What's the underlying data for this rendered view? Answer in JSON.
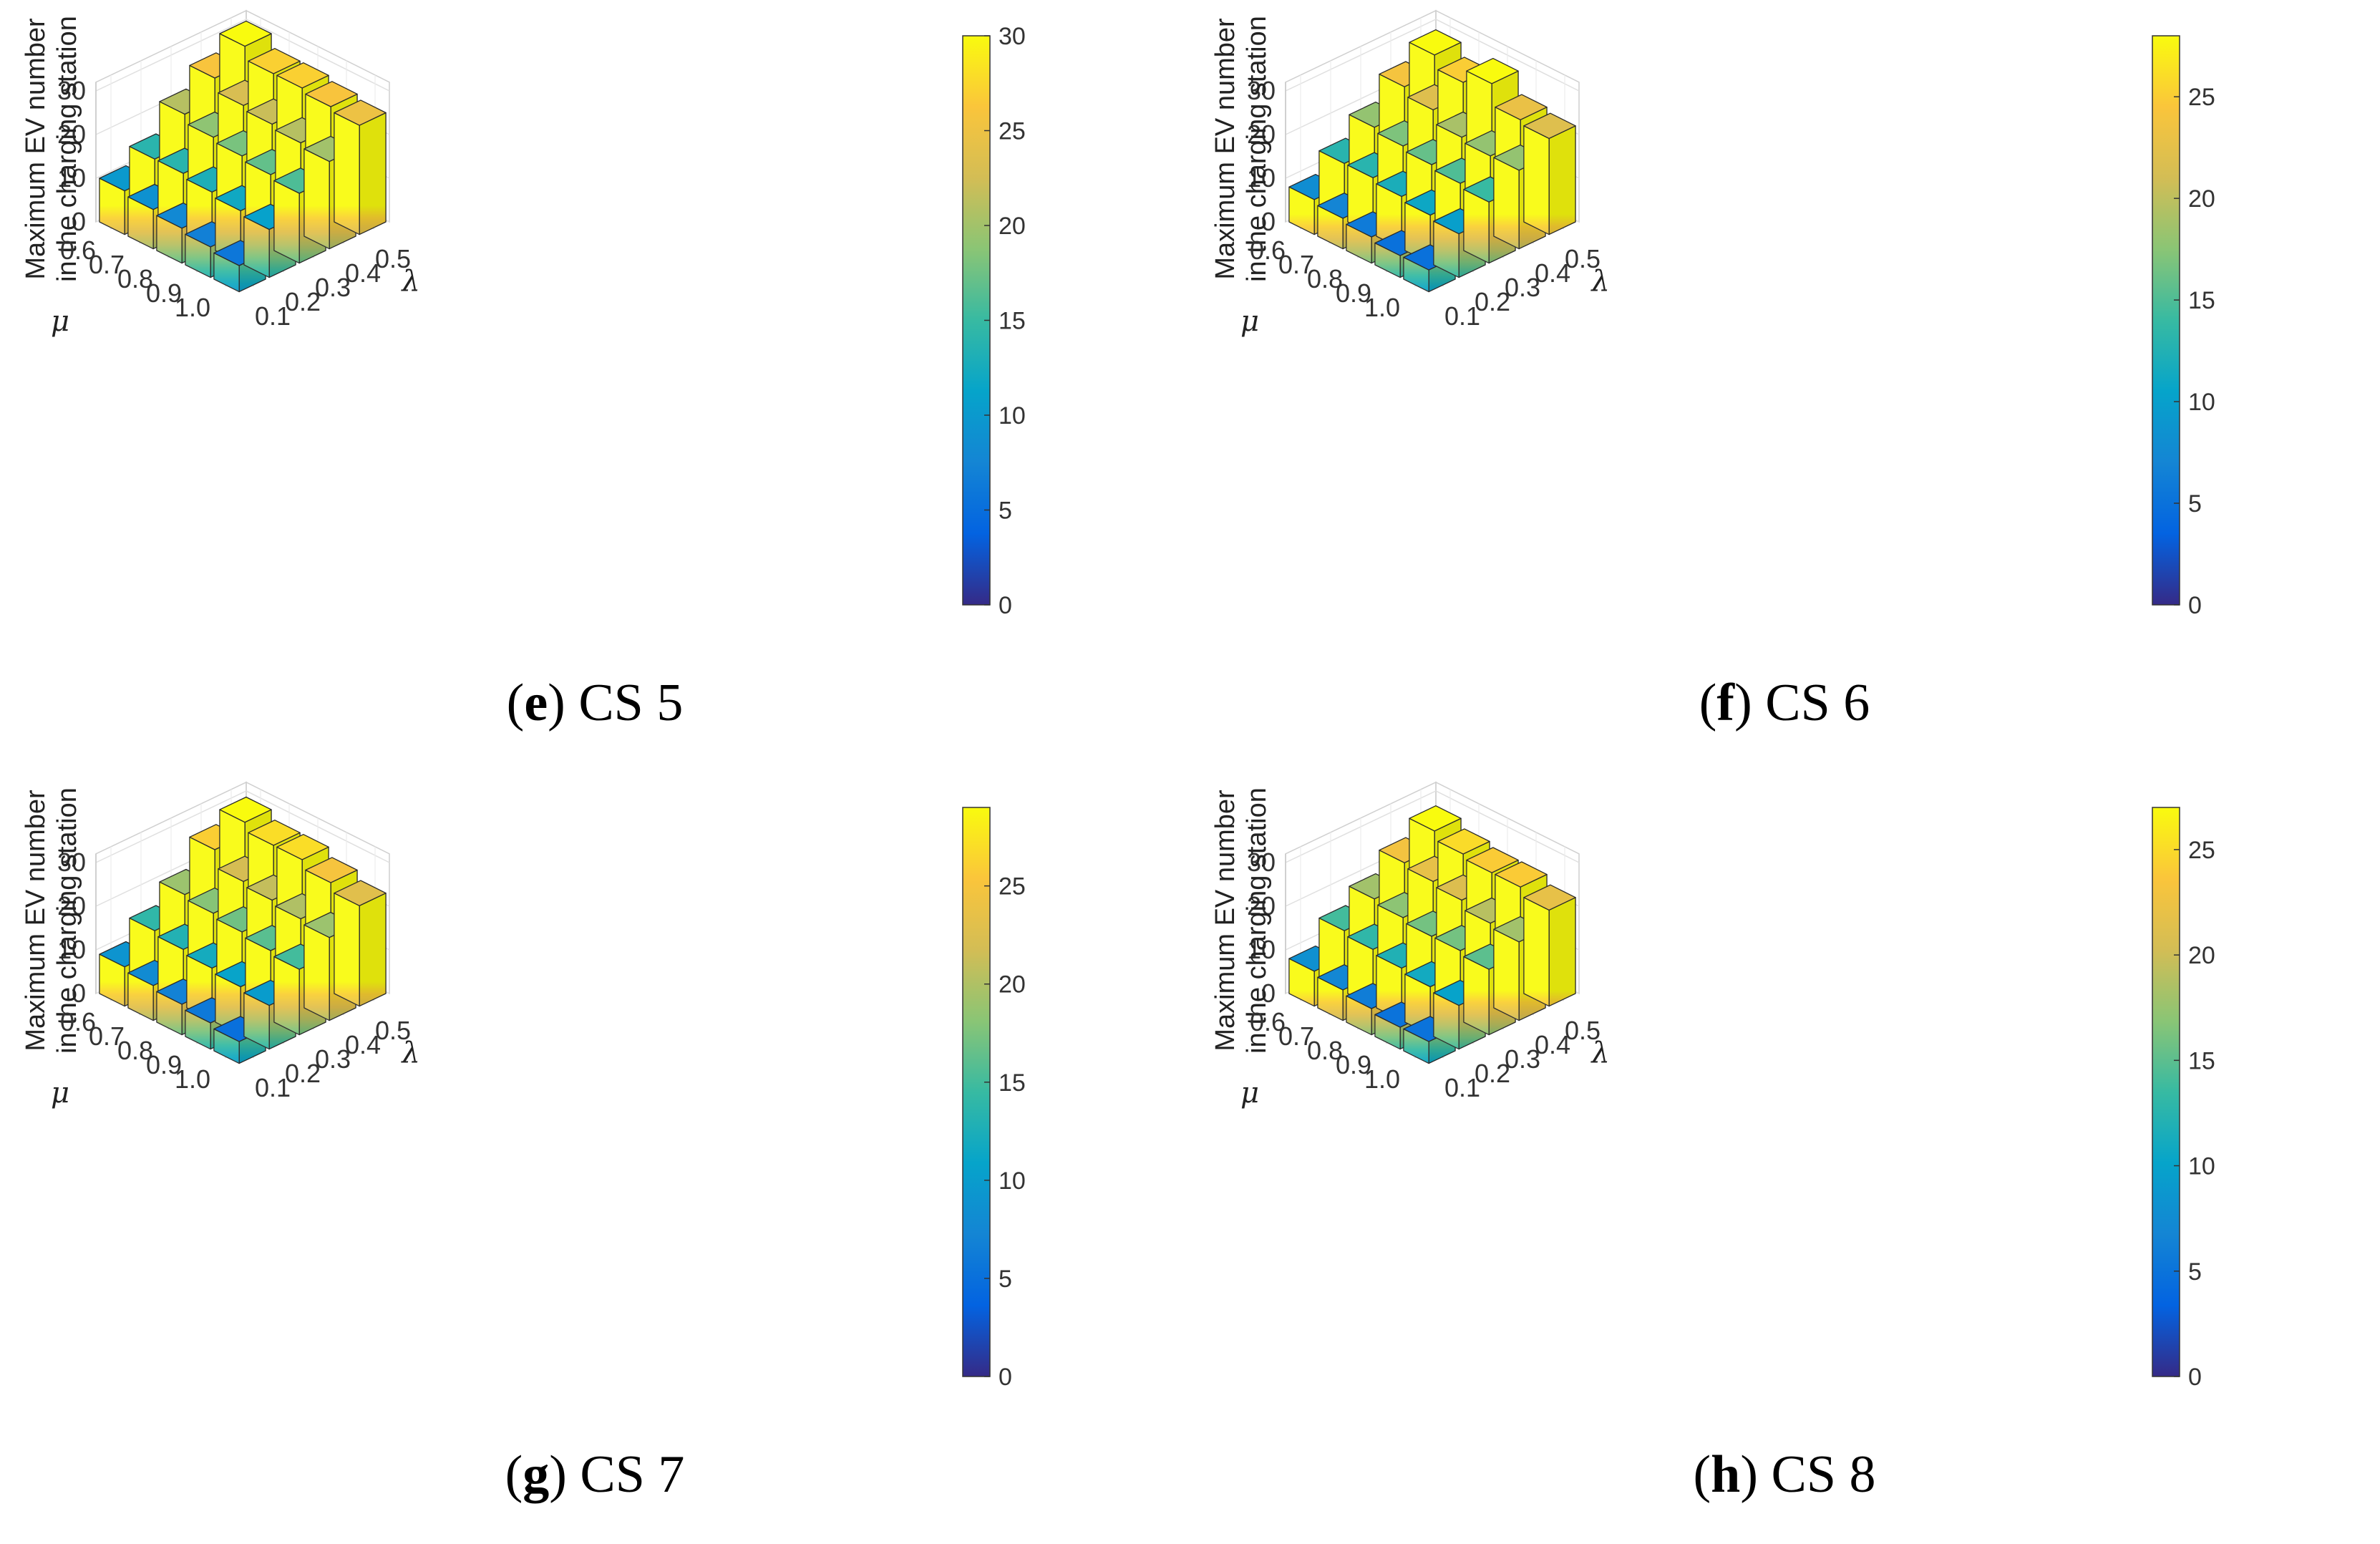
{
  "chart_data": [
    {
      "type": "bar3d",
      "caption": {
        "letter": "e",
        "text": "CS 5"
      },
      "zlabel_line1": "Maximum EV number",
      "zlabel_line2": "in the charging station",
      "mu_label": "μ",
      "lambda_label": "λ",
      "mu": [
        "0.6",
        "0.7",
        "0.8",
        "0.9",
        "1.0"
      ],
      "lambda": [
        "0.1",
        "0.2",
        "0.3",
        "0.4",
        "0.5"
      ],
      "zlim": [
        0,
        30
      ],
      "zticks": [
        "0",
        "10",
        "20",
        "30"
      ],
      "colorbar": {
        "min": 0,
        "max": 30,
        "ticks": [
          "0",
          "5",
          "10",
          "15",
          "20",
          "25",
          "30"
        ]
      },
      "values": [
        [
          10,
          14,
          21,
          26,
          30
        ],
        [
          9,
          14,
          19,
          23,
          27
        ],
        [
          8,
          13,
          18,
          22,
          27
        ],
        [
          7,
          12,
          17,
          21,
          26
        ],
        [
          6,
          11,
          16,
          20,
          25
        ]
      ]
    },
    {
      "type": "bar3d",
      "caption": {
        "letter": "f",
        "text": "CS 6"
      },
      "zlabel_line1": "Maximum EV number",
      "zlabel_line2": "in the charging station",
      "mu_label": "μ",
      "lambda_label": "λ",
      "mu": [
        "0.6",
        "0.7",
        "0.8",
        "0.9",
        "1.0"
      ],
      "lambda": [
        "0.1",
        "0.2",
        "0.3",
        "0.4",
        "0.5"
      ],
      "zlim": [
        0,
        30
      ],
      "zticks": [
        "0",
        "10",
        "20",
        "30"
      ],
      "colorbar": {
        "min": 0,
        "max": 28,
        "ticks": [
          "0",
          "5",
          "10",
          "15",
          "20",
          "25"
        ]
      },
      "values": [
        [
          8,
          13,
          18,
          24,
          28
        ],
        [
          7,
          13,
          17,
          22,
          25
        ],
        [
          6,
          12,
          16,
          19,
          28
        ],
        [
          5,
          11,
          15,
          18,
          23
        ],
        [
          5,
          10,
          14,
          18,
          22
        ]
      ]
    },
    {
      "type": "bar3d",
      "caption": {
        "letter": "g",
        "text": "CS 7"
      },
      "zlabel_line1": "Maximum EV number",
      "zlabel_line2": "in the charging station",
      "mu_label": "μ",
      "lambda_label": "λ",
      "mu": [
        "0.6",
        "0.7",
        "0.8",
        "0.9",
        "1.0"
      ],
      "lambda": [
        "0.1",
        "0.2",
        "0.3",
        "0.4",
        "0.5"
      ],
      "zlim": [
        0,
        30
      ],
      "zticks": [
        "0",
        "10",
        "20",
        "30"
      ],
      "colorbar": {
        "min": 0,
        "max": 29,
        "ticks": [
          "0",
          "5",
          "10",
          "15",
          "20",
          "25"
        ]
      },
      "values": [
        [
          9,
          14,
          19,
          26,
          29
        ],
        [
          8,
          13,
          18,
          22,
          27
        ],
        [
          7,
          12,
          17,
          21,
          27
        ],
        [
          6,
          11,
          16,
          20,
          25
        ],
        [
          5,
          10,
          15,
          19,
          23
        ]
      ]
    },
    {
      "type": "bar3d",
      "caption": {
        "letter": "h",
        "text": "CS 8"
      },
      "zlabel_line1": "Maximum EV number",
      "zlabel_line2": "in the charging station",
      "mu_label": "μ",
      "lambda_label": "λ",
      "mu": [
        "0.6",
        "0.7",
        "0.8",
        "0.9",
        "1.0"
      ],
      "lambda": [
        "0.1",
        "0.2",
        "0.3",
        "0.4",
        "0.5"
      ],
      "zlim": [
        0,
        30
      ],
      "zticks": [
        "0",
        "10",
        "20",
        "30"
      ],
      "colorbar": {
        "min": 0,
        "max": 27,
        "ticks": [
          "0",
          "5",
          "10",
          "15",
          "20",
          "25"
        ]
      },
      "values": [
        [
          8,
          14,
          18,
          23,
          27
        ],
        [
          7,
          13,
          17,
          22,
          25
        ],
        [
          6,
          12,
          16,
          21,
          24
        ],
        [
          5,
          11,
          16,
          19,
          24
        ],
        [
          5,
          10,
          15,
          18,
          22
        ]
      ]
    }
  ]
}
